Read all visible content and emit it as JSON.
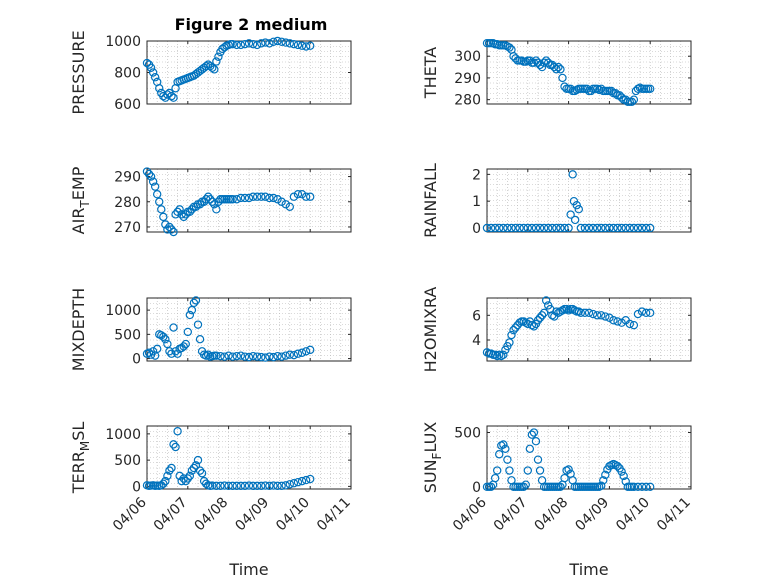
{
  "figure": {
    "title": "Figure 2 medium"
  },
  "colors": {
    "marker": "#0072BD",
    "axis": "#262626",
    "grid": "#b5b5b5",
    "background": "#ffffff"
  },
  "chart_data": [
    {
      "id": "pressure",
      "type": "scatter",
      "ylabel": "PRESSURE",
      "ylim": [
        600,
        1000
      ],
      "yticks": [
        "600",
        "800",
        "1000"
      ],
      "xlim": [
        0,
        5
      ],
      "xticks": [],
      "grid": true,
      "x": [
        0.0,
        0.05,
        0.1,
        0.15,
        0.2,
        0.25,
        0.3,
        0.35,
        0.4,
        0.45,
        0.5,
        0.55,
        0.6,
        0.65,
        0.7,
        0.75,
        0.8,
        0.85,
        0.9,
        0.95,
        1.0,
        1.05,
        1.1,
        1.15,
        1.2,
        1.25,
        1.3,
        1.35,
        1.4,
        1.45,
        1.5,
        1.55,
        1.6,
        1.65,
        1.7,
        1.75,
        1.8,
        1.85,
        1.9,
        1.95,
        2.0,
        2.05,
        2.1,
        2.2,
        2.3,
        2.4,
        2.5,
        2.6,
        2.7,
        2.8,
        2.9,
        3.0,
        3.1,
        3.2,
        3.3,
        3.4,
        3.5,
        3.6,
        3.7,
        3.8,
        3.9,
        4.0
      ],
      "y": [
        860,
        850,
        830,
        800,
        770,
        740,
        700,
        670,
        650,
        640,
        660,
        670,
        650,
        640,
        700,
        740,
        745,
        750,
        755,
        760,
        765,
        770,
        775,
        780,
        790,
        800,
        810,
        820,
        830,
        840,
        850,
        840,
        830,
        820,
        870,
        900,
        930,
        950,
        960,
        970,
        975,
        980,
        980,
        975,
        975,
        980,
        985,
        980,
        975,
        985,
        990,
        985,
        995,
        1000,
        995,
        990,
        985,
        980,
        975,
        970,
        965,
        970
      ]
    },
    {
      "id": "theta",
      "type": "scatter",
      "ylabel": "THETA",
      "ylim": [
        278,
        307
      ],
      "yticks": [
        "280",
        "290",
        "300"
      ],
      "xlim": [
        0,
        5
      ],
      "xticks": [],
      "grid": true,
      "x": [
        0.0,
        0.05,
        0.1,
        0.15,
        0.2,
        0.25,
        0.3,
        0.35,
        0.4,
        0.45,
        0.5,
        0.55,
        0.6,
        0.65,
        0.7,
        0.75,
        0.8,
        0.85,
        0.9,
        0.95,
        1.0,
        1.05,
        1.1,
        1.15,
        1.2,
        1.25,
        1.3,
        1.35,
        1.4,
        1.45,
        1.5,
        1.55,
        1.6,
        1.65,
        1.7,
        1.75,
        1.8,
        1.85,
        1.9,
        1.95,
        2.0,
        2.05,
        2.1,
        2.15,
        2.2,
        2.25,
        2.3,
        2.35,
        2.4,
        2.45,
        2.5,
        2.55,
        2.6,
        2.65,
        2.7,
        2.75,
        2.8,
        2.85,
        2.9,
        2.95,
        3.0,
        3.05,
        3.1,
        3.15,
        3.2,
        3.25,
        3.3,
        3.35,
        3.4,
        3.45,
        3.5,
        3.55,
        3.6,
        3.65,
        3.7,
        3.75,
        3.8,
        3.85,
        3.9,
        3.95,
        4.0
      ],
      "y": [
        306,
        306,
        306,
        306,
        305.5,
        305.5,
        305,
        305,
        305,
        305,
        304.5,
        304,
        303,
        300,
        299,
        298,
        298,
        298,
        297.5,
        297.5,
        298,
        298,
        297,
        297,
        298,
        297,
        296,
        295,
        297,
        298,
        297,
        296,
        296,
        295,
        294,
        295,
        294,
        290,
        286,
        285,
        285,
        285,
        284,
        284,
        284.5,
        285,
        285,
        285,
        285,
        285,
        284,
        284,
        285,
        285,
        285,
        284.5,
        285,
        284,
        284,
        284,
        284,
        284,
        283,
        283,
        282,
        282,
        281,
        280,
        280,
        279,
        279,
        279,
        280,
        284,
        285,
        285.5,
        285,
        285,
        285,
        285,
        285
      ]
    },
    {
      "id": "air_temp",
      "type": "scatter",
      "ylabel": "AIR",
      "ylabel_sub": "T",
      "ylabel_rest": "EMP",
      "ylim": [
        268,
        293
      ],
      "yticks": [
        "270",
        "280",
        "290"
      ],
      "xlim": [
        0,
        5
      ],
      "xticks": [],
      "grid": true,
      "x": [
        0.0,
        0.05,
        0.1,
        0.15,
        0.2,
        0.25,
        0.3,
        0.35,
        0.4,
        0.45,
        0.5,
        0.55,
        0.6,
        0.65,
        0.7,
        0.75,
        0.8,
        0.85,
        0.9,
        0.95,
        1.0,
        1.05,
        1.1,
        1.15,
        1.2,
        1.25,
        1.3,
        1.35,
        1.4,
        1.45,
        1.5,
        1.55,
        1.6,
        1.65,
        1.7,
        1.75,
        1.8,
        1.85,
        1.9,
        1.95,
        2.0,
        2.05,
        2.1,
        2.2,
        2.3,
        2.4,
        2.5,
        2.6,
        2.7,
        2.8,
        2.9,
        3.0,
        3.1,
        3.2,
        3.3,
        3.4,
        3.5,
        3.6,
        3.7,
        3.8,
        3.9,
        4.0
      ],
      "y": [
        292,
        291,
        290,
        288,
        286,
        283,
        280,
        277,
        274,
        271,
        269,
        270,
        269,
        268,
        275,
        276,
        277,
        275,
        274,
        275,
        276,
        276,
        277,
        278,
        278,
        279,
        279,
        280,
        280,
        281,
        282,
        281,
        280,
        279,
        277,
        280,
        281,
        281,
        281,
        281,
        281,
        281,
        281,
        281,
        281.5,
        281.5,
        281.5,
        282,
        282,
        282,
        282,
        281.5,
        281.5,
        281,
        280,
        279,
        278,
        282,
        283,
        283,
        282,
        282
      ]
    },
    {
      "id": "rainfall",
      "type": "scatter",
      "ylabel": "RAINFALL",
      "ylim": [
        -0.15,
        2.2
      ],
      "yticks": [
        "0",
        "1",
        "2"
      ],
      "xlim": [
        0,
        5
      ],
      "xticks": [],
      "grid": true,
      "x": [
        0.0,
        0.1,
        0.2,
        0.3,
        0.4,
        0.5,
        0.6,
        0.7,
        0.8,
        0.9,
        1.0,
        1.1,
        1.2,
        1.3,
        1.4,
        1.5,
        1.6,
        1.7,
        1.8,
        1.9,
        2.0,
        2.05,
        2.1,
        2.13,
        2.16,
        2.2,
        2.25,
        2.3,
        2.4,
        2.5,
        2.6,
        2.7,
        2.8,
        2.9,
        3.0,
        3.1,
        3.2,
        3.3,
        3.4,
        3.5,
        3.6,
        3.7,
        3.8,
        3.9,
        4.0
      ],
      "y": [
        0,
        0,
        0,
        0,
        0,
        0,
        0,
        0,
        0,
        0,
        0,
        0,
        0,
        0,
        0,
        0,
        0,
        0,
        0,
        0,
        0,
        0.5,
        2,
        1,
        0.3,
        0.85,
        0.7,
        0,
        0,
        0,
        0,
        0,
        0,
        0,
        0,
        0,
        0,
        0,
        0,
        0,
        0,
        0,
        0,
        0,
        0
      ]
    },
    {
      "id": "mixdepth",
      "type": "scatter",
      "ylabel": "MIXDEPTH",
      "ylim": [
        -50,
        1250
      ],
      "yticks": [
        "0",
        "500",
        "1000"
      ],
      "xlim": [
        0,
        5
      ],
      "xticks": [],
      "grid": true,
      "x": [
        0.0,
        0.05,
        0.1,
        0.15,
        0.2,
        0.25,
        0.3,
        0.35,
        0.4,
        0.45,
        0.5,
        0.55,
        0.6,
        0.65,
        0.7,
        0.75,
        0.8,
        0.85,
        0.9,
        0.95,
        1.0,
        1.05,
        1.1,
        1.15,
        1.2,
        1.25,
        1.3,
        1.35,
        1.4,
        1.45,
        1.5,
        1.55,
        1.6,
        1.65,
        1.7,
        1.8,
        1.9,
        2.0,
        2.1,
        2.2,
        2.3,
        2.4,
        2.5,
        2.6,
        2.7,
        2.8,
        2.9,
        3.0,
        3.1,
        3.2,
        3.3,
        3.4,
        3.5,
        3.6,
        3.7,
        3.8,
        3.9,
        4.0
      ],
      "y": [
        100,
        120,
        80,
        150,
        60,
        200,
        500,
        480,
        450,
        400,
        300,
        150,
        100,
        640,
        150,
        100,
        200,
        220,
        250,
        300,
        550,
        900,
        1000,
        1150,
        1200,
        700,
        400,
        150,
        80,
        60,
        80,
        40,
        50,
        60,
        60,
        50,
        40,
        60,
        40,
        50,
        60,
        40,
        30,
        50,
        40,
        30,
        20,
        40,
        30,
        50,
        40,
        60,
        80,
        70,
        100,
        120,
        150,
        180
      ]
    },
    {
      "id": "h2omixra",
      "type": "scatter",
      "ylabel": "H2OMIXRA",
      "ylim": [
        2.3,
        7.4
      ],
      "yticks": [
        "4",
        "6"
      ],
      "xlim": [
        0,
        5
      ],
      "xticks": [],
      "grid": true,
      "x": [
        0.0,
        0.05,
        0.1,
        0.15,
        0.2,
        0.25,
        0.3,
        0.35,
        0.4,
        0.45,
        0.5,
        0.55,
        0.6,
        0.65,
        0.7,
        0.75,
        0.8,
        0.85,
        0.9,
        0.95,
        1.0,
        1.05,
        1.1,
        1.15,
        1.2,
        1.25,
        1.3,
        1.35,
        1.4,
        1.45,
        1.5,
        1.55,
        1.6,
        1.65,
        1.7,
        1.75,
        1.8,
        1.85,
        1.9,
        1.95,
        2.0,
        2.05,
        2.1,
        2.15,
        2.2,
        2.25,
        2.3,
        2.4,
        2.5,
        2.6,
        2.7,
        2.8,
        2.9,
        3.0,
        3.1,
        3.2,
        3.3,
        3.4,
        3.5,
        3.6,
        3.7,
        3.8,
        3.9,
        4.0
      ],
      "y": [
        3.0,
        2.9,
        2.9,
        2.8,
        2.8,
        2.7,
        2.8,
        2.7,
        2.8,
        3.2,
        3.5,
        3.8,
        4.4,
        4.8,
        5.0,
        5.2,
        5.4,
        5.5,
        5.5,
        5.4,
        5.3,
        5.5,
        5.2,
        5.1,
        5.3,
        5.6,
        5.8,
        6.0,
        6.2,
        7.2,
        6.8,
        6.5,
        6.0,
        5.9,
        6.3,
        6.2,
        6.3,
        6.4,
        6.5,
        6.5,
        6.4,
        6.5,
        6.5,
        6.4,
        6.3,
        6.3,
        6.2,
        6.2,
        6.2,
        6.1,
        6.0,
        6.0,
        5.9,
        5.8,
        5.6,
        5.5,
        5.4,
        5.6,
        5.3,
        5.2,
        6.1,
        6.3,
        6.2,
        6.2
      ]
    },
    {
      "id": "terrain_msl",
      "type": "scatter",
      "ylabel": "TERR",
      "ylabel_sub": "M",
      "ylabel_rest": "SL",
      "ylim": [
        -50,
        1150
      ],
      "yticks": [
        "0",
        "500",
        "1000"
      ],
      "xlim": [
        0,
        5
      ],
      "grid": true,
      "xticks": [
        "04/06",
        "04/07",
        "04/08",
        "04/09",
        "04/10",
        "04/11"
      ],
      "xlabel": "Time",
      "x": [
        0.0,
        0.05,
        0.1,
        0.15,
        0.2,
        0.25,
        0.3,
        0.35,
        0.4,
        0.45,
        0.5,
        0.55,
        0.6,
        0.65,
        0.7,
        0.75,
        0.8,
        0.85,
        0.9,
        0.95,
        1.0,
        1.05,
        1.1,
        1.15,
        1.2,
        1.25,
        1.3,
        1.35,
        1.4,
        1.45,
        1.5,
        1.55,
        1.6,
        1.7,
        1.8,
        1.9,
        2.0,
        2.1,
        2.2,
        2.3,
        2.4,
        2.5,
        2.6,
        2.7,
        2.8,
        2.9,
        3.0,
        3.1,
        3.2,
        3.3,
        3.4,
        3.5,
        3.6,
        3.7,
        3.8,
        3.9,
        4.0
      ],
      "y": [
        20,
        10,
        15,
        20,
        10,
        15,
        10,
        20,
        50,
        100,
        200,
        300,
        350,
        800,
        750,
        1050,
        200,
        100,
        150,
        100,
        150,
        200,
        300,
        350,
        400,
        500,
        300,
        250,
        100,
        50,
        20,
        10,
        15,
        10,
        10,
        15,
        10,
        10,
        10,
        10,
        10,
        15,
        10,
        10,
        10,
        15,
        10,
        15,
        10,
        10,
        20,
        40,
        60,
        80,
        100,
        120,
        140
      ]
    },
    {
      "id": "sun_flux",
      "type": "scatter",
      "ylabel": "SUN",
      "ylabel_sub": "F",
      "ylabel_rest": "LUX",
      "ylim": [
        -20,
        560
      ],
      "yticks": [
        "0",
        "500"
      ],
      "xlim": [
        0,
        5
      ],
      "grid": true,
      "xticks": [
        "04/06",
        "04/07",
        "04/08",
        "04/09",
        "04/10",
        "04/11"
      ],
      "xlabel": "Time",
      "x": [
        0.0,
        0.05,
        0.1,
        0.15,
        0.2,
        0.25,
        0.3,
        0.35,
        0.4,
        0.45,
        0.5,
        0.55,
        0.6,
        0.65,
        0.7,
        0.75,
        0.8,
        0.85,
        0.9,
        0.95,
        1.0,
        1.05,
        1.1,
        1.15,
        1.2,
        1.25,
        1.3,
        1.35,
        1.4,
        1.45,
        1.5,
        1.55,
        1.6,
        1.65,
        1.7,
        1.75,
        1.8,
        1.85,
        1.9,
        1.95,
        2.0,
        2.05,
        2.1,
        2.15,
        2.2,
        2.25,
        2.3,
        2.35,
        2.4,
        2.45,
        2.5,
        2.55,
        2.6,
        2.65,
        2.7,
        2.75,
        2.8,
        2.85,
        2.9,
        2.95,
        3.0,
        3.05,
        3.1,
        3.15,
        3.2,
        3.25,
        3.3,
        3.35,
        3.4,
        3.45,
        3.5,
        3.55,
        3.6,
        3.7,
        3.8,
        3.9,
        4.0
      ],
      "y": [
        0,
        0,
        0,
        20,
        80,
        150,
        300,
        380,
        390,
        350,
        250,
        150,
        60,
        0,
        0,
        0,
        0,
        0,
        0,
        20,
        150,
        350,
        480,
        500,
        420,
        250,
        150,
        60,
        0,
        0,
        0,
        0,
        0,
        0,
        0,
        0,
        0,
        20,
        80,
        150,
        160,
        120,
        60,
        0,
        0,
        0,
        0,
        0,
        0,
        0,
        0,
        0,
        0,
        0,
        0,
        0,
        10,
        60,
        110,
        160,
        190,
        200,
        210,
        200,
        190,
        170,
        140,
        100,
        50,
        0,
        0,
        0,
        0,
        0,
        0,
        0,
        0
      ]
    }
  ]
}
